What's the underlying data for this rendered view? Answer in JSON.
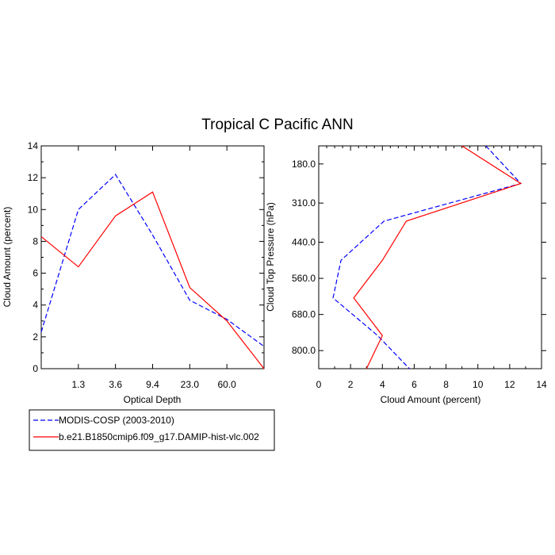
{
  "title": "Tropical C Pacific ANN",
  "colors": {
    "modis": "#0000ff",
    "model": "#ff0000",
    "axis": "#000000"
  },
  "legend": {
    "placement": "bottom-left",
    "entries": [
      {
        "label": "MODIS-COSP (2003-2010)",
        "style": "dashed",
        "color": "#0000ff"
      },
      {
        "label": "b.e21.B1850cmip6.f09_g17.DAMIP-hist-vlc.002",
        "style": "solid",
        "color": "#ff0000"
      }
    ]
  },
  "chart_data": [
    {
      "type": "line",
      "xlabel": "Optical Depth",
      "ylabel": "Cloud Amount (percent)",
      "categories": [
        "1.3",
        "3.6",
        "9.4",
        "23.0",
        "60.0"
      ],
      "x": [
        0,
        1,
        2,
        3,
        4,
        5,
        6
      ],
      "xlim": [
        0,
        6
      ],
      "ylim": [
        0,
        14
      ],
      "yticks": [
        "0",
        "2",
        "4",
        "6",
        "8",
        "10",
        "12",
        "14"
      ],
      "grid": false,
      "series": [
        {
          "name": "MODIS-COSP (2003-2010)",
          "values": [
            2.3,
            10.0,
            12.2,
            8.4,
            4.3,
            3.1,
            1.4
          ]
        },
        {
          "name": "b.e21.B1850cmip6.f09_g17.DAMIP-hist-vlc.002",
          "values": [
            8.3,
            6.4,
            9.6,
            11.1,
            5.1,
            3.0,
            0.0
          ]
        }
      ]
    },
    {
      "type": "line",
      "xlabel": "Cloud Amount (percent)",
      "ylabel": "Cloud Top Pressure (hPa)",
      "xticks": [
        "0",
        "2",
        "4",
        "6",
        "8",
        "10",
        "12",
        "14"
      ],
      "xlim": [
        0,
        14
      ],
      "ylim": [
        120,
        860
      ],
      "ytick_values": [
        180,
        310,
        440,
        560,
        680,
        800
      ],
      "ytick_labels": [
        "180.0",
        "310.0",
        "440.0",
        "560.0",
        "680.0",
        "800.0"
      ],
      "grid": false,
      "series": [
        {
          "name": "MODIS-COSP (2003-2010)",
          "values": [
            10.5,
            12.7,
            4.1,
            1.4,
            0.9,
            3.7,
            5.7
          ],
          "pressure": [
            120,
            245,
            370,
            500,
            625,
            750,
            860
          ]
        },
        {
          "name": "b.e21.B1850cmip6.f09_g17.DAMIP-hist-vlc.002",
          "values": [
            9.0,
            12.7,
            5.5,
            4.0,
            2.2,
            4.0,
            3.0
          ],
          "pressure": [
            120,
            245,
            370,
            500,
            625,
            750,
            860
          ]
        }
      ]
    }
  ]
}
